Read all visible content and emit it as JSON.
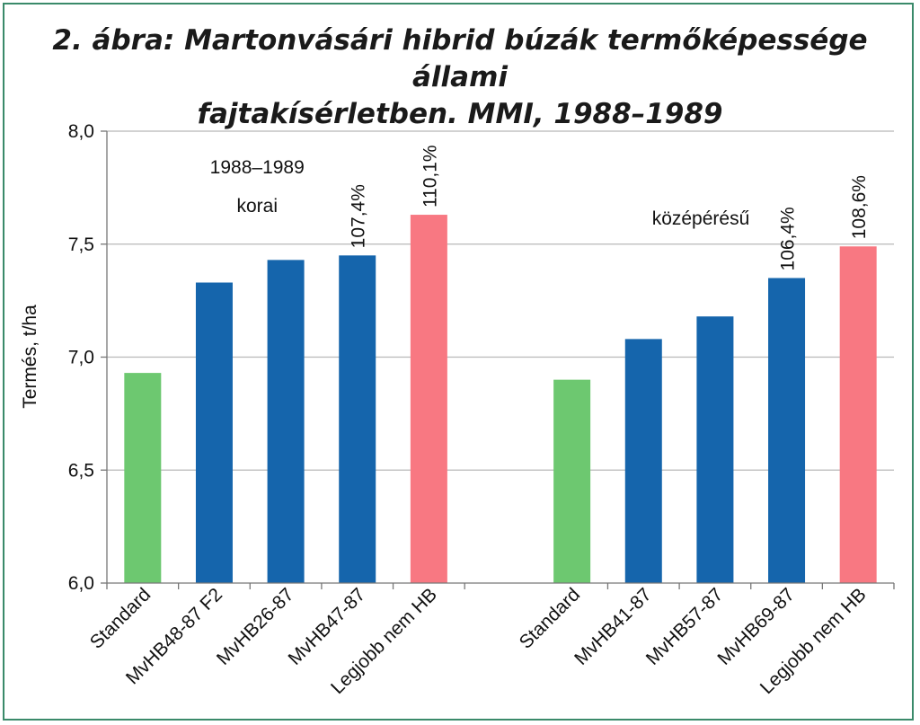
{
  "chart_data": {
    "type": "bar",
    "title_lines": [
      "2. ábra: Martonvásári hibrid búzák termőképessége állami",
      "fajtakísérletben. MMI, 1988–1989"
    ],
    "xlabel": "",
    "ylabel": "Termés, t/ha",
    "ylim": [
      6.0,
      8.0
    ],
    "yticks": [
      "8,0",
      "7,5",
      "7,0",
      "6,5",
      "6,0"
    ],
    "ytick_values": [
      8.0,
      7.5,
      7.0,
      6.5,
      6.0
    ],
    "grid": true,
    "groups": [
      {
        "annotations": [
          "1988–1989",
          "korai"
        ],
        "bars": [
          {
            "category": "Standard",
            "value": 6.93,
            "color": "#6dc870",
            "label": ""
          },
          {
            "category": "MvHB48-87 F2",
            "value": 7.33,
            "color": "#1565ac",
            "label": ""
          },
          {
            "category": "MvHB26-87",
            "value": 7.43,
            "color": "#1565ac",
            "label": ""
          },
          {
            "category": "MvHB47-87",
            "value": 7.45,
            "color": "#1565ac",
            "label": "107,4%"
          },
          {
            "category": "Legjobb nem HB",
            "value": 7.63,
            "color": "#f87882",
            "label": "110,1%"
          }
        ]
      },
      {
        "annotations": [
          "középérésű"
        ],
        "bars": [
          {
            "category": "Standard",
            "value": 6.9,
            "color": "#6dc870",
            "label": ""
          },
          {
            "category": "MvHB41-87",
            "value": 7.08,
            "color": "#1565ac",
            "label": ""
          },
          {
            "category": "MvHB57-87",
            "value": 7.18,
            "color": "#1565ac",
            "label": ""
          },
          {
            "category": "MvHB69-87",
            "value": 7.35,
            "color": "#1565ac",
            "label": "106,4%"
          },
          {
            "category": "Legjobb nem HB",
            "value": 7.49,
            "color": "#f87882",
            "label": "108,6%"
          }
        ]
      }
    ]
  }
}
